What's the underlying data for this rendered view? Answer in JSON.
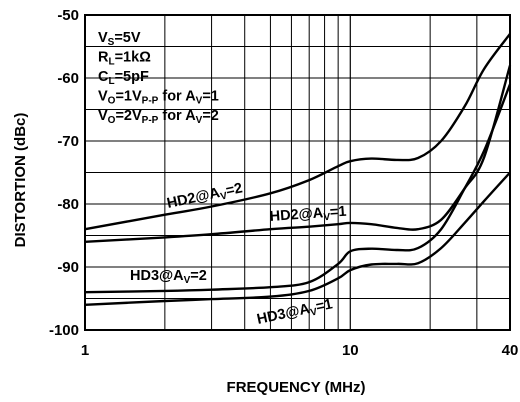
{
  "chart_data": {
    "type": "line",
    "title": "",
    "xlabel": "FREQUENCY (MHz)",
    "ylabel": "DISTORTION (dBc)",
    "x_scale": "log",
    "xlim": [
      1,
      40
    ],
    "ylim": [
      -100,
      -50
    ],
    "x_tick_labels": [
      "1",
      "10",
      "40"
    ],
    "y_tick_labels": [
      "-50",
      "-60",
      "-70",
      "-80",
      "-90",
      "-100"
    ],
    "grid": true,
    "conditions": [
      {
        "main": "V",
        "sub": "S",
        "rest": "=5V"
      },
      {
        "main": "R",
        "sub": "L",
        "rest": "=1kΩ"
      },
      {
        "main": "C",
        "sub": "L",
        "rest": "=5pF"
      },
      {
        "main": "V",
        "sub": "O",
        "rest": "=1V",
        "sub2": "P-P",
        "rest2": " for A",
        "sub3": "V",
        "rest3": "=1"
      },
      {
        "main": "V",
        "sub": "O",
        "rest": "=2V",
        "sub2": "P-P",
        "rest2": " for A",
        "sub3": "V",
        "rest3": "=2"
      }
    ],
    "series": [
      {
        "name": "HD2@AV=2",
        "label_main": "HD2@A",
        "label_sub": "V",
        "label_rest": "=2",
        "x": [
          1,
          2,
          3,
          5,
          7,
          9,
          10,
          12,
          15,
          18,
          22,
          27,
          32,
          40
        ],
        "y": [
          -84,
          -81.7,
          -80.4,
          -78.3,
          -76.2,
          -74.0,
          -73.2,
          -72.8,
          -73.0,
          -72.7,
          -70.0,
          -64.5,
          -58.5,
          -53.0
        ]
      },
      {
        "name": "HD2@AV=1",
        "label_main": "HD2@A",
        "label_sub": "V",
        "label_rest": "=1",
        "x": [
          1,
          2,
          3,
          5,
          7,
          9,
          10,
          12,
          15,
          18,
          22,
          27,
          32,
          40
        ],
        "y": [
          -86,
          -85.3,
          -84.8,
          -84.0,
          -83.6,
          -83.2,
          -83.0,
          -83.2,
          -83.8,
          -84.0,
          -82.5,
          -77.5,
          -72.5,
          -58.0
        ]
      },
      {
        "name": "HD3@AV=2",
        "label_main": "HD3@A",
        "label_sub": "V",
        "label_rest": "=2",
        "x": [
          1,
          2,
          3,
          5,
          7,
          9,
          10,
          12,
          15,
          18,
          22,
          27,
          32,
          40
        ],
        "y": [
          -94,
          -93.8,
          -93.6,
          -93.2,
          -92.4,
          -89.5,
          -87.5,
          -87.1,
          -87.3,
          -87.0,
          -84.0,
          -77.5,
          -71.5,
          -61.0
        ]
      },
      {
        "name": "HD3@AV=1",
        "label_main": "HD3@A",
        "label_sub": "V",
        "label_rest": "=1",
        "x": [
          1,
          2,
          3,
          5,
          7,
          9,
          10,
          12,
          15,
          18,
          22,
          27,
          32,
          40
        ],
        "y": [
          -96,
          -95.4,
          -95.1,
          -94.7,
          -93.8,
          -91.8,
          -90.5,
          -89.6,
          -89.5,
          -89.4,
          -87.0,
          -83.0,
          -79.5,
          -75.0
        ]
      }
    ]
  }
}
